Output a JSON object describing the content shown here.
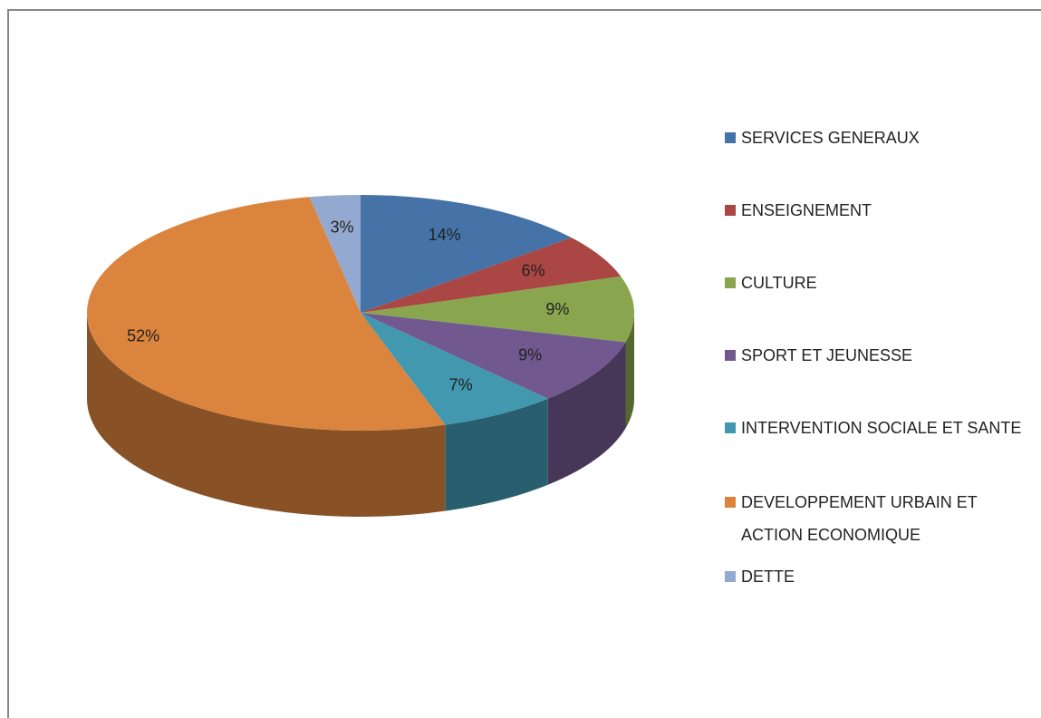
{
  "chart_data": {
    "type": "pie",
    "categories": [
      "SERVICES GENERAUX",
      "ENSEIGNEMENT",
      "CULTURE",
      "SPORT ET JEUNESSE",
      "INTERVENTION SOCIALE ET SANTE",
      "DEVELOPPEMENT URBAIN ET ACTION ECONOMIQUE",
      "DETTE"
    ],
    "values": [
      14,
      6,
      9,
      9,
      7,
      52,
      3
    ],
    "value_labels": [
      "14%",
      "6%",
      "9%",
      "9%",
      "7%",
      "52%",
      "3%"
    ],
    "colors": [
      "#4572a7",
      "#aa4643",
      "#89a54e",
      "#71588f",
      "#4198af",
      "#db843d",
      "#93a9cf"
    ],
    "legend": "right"
  }
}
